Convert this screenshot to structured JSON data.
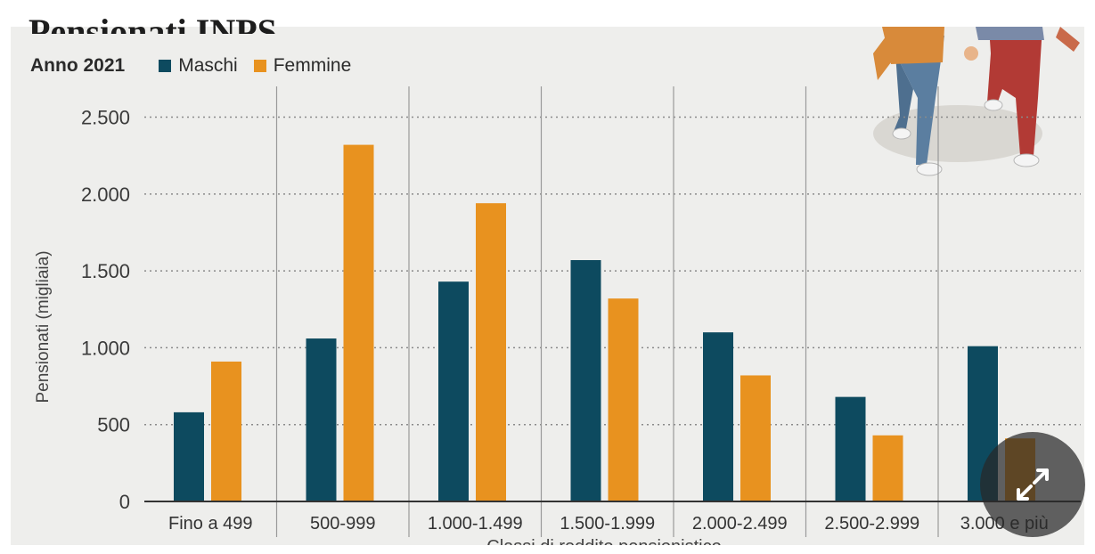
{
  "title_fragment": "Pensionati INPS",
  "legend": {
    "year": "Anno 2021",
    "series": [
      {
        "name": "Maschi",
        "color": "#0d4a5f"
      },
      {
        "name": "Femmine",
        "color": "#e8921f"
      }
    ]
  },
  "expand_icon": "expand-arrows-icon",
  "chart_data": {
    "type": "bar",
    "title": "",
    "xlabel": "Classi di reddito pensionistico",
    "ylabel": "Pensionati (migliaia)",
    "ylim": [
      0,
      2700
    ],
    "yticks": [
      0,
      500,
      1000,
      1500,
      2000,
      2500
    ],
    "ytick_labels": [
      "0",
      "500",
      "1.000",
      "1.500",
      "2.000",
      "2.500"
    ],
    "grid": true,
    "legend_position": "top-left",
    "categories": [
      "Fino a 499",
      "500-999",
      "1.000-1.499",
      "1.500-1.999",
      "2.000-2.499",
      "2.500-2.999",
      "3.000 e più"
    ],
    "series": [
      {
        "name": "Maschi",
        "color": "#0d4a5f",
        "values": [
          580,
          1060,
          1430,
          1570,
          1100,
          680,
          1010
        ]
      },
      {
        "name": "Femmine",
        "color": "#e8921f",
        "values": [
          910,
          2320,
          1940,
          1320,
          820,
          430,
          410
        ]
      }
    ]
  }
}
